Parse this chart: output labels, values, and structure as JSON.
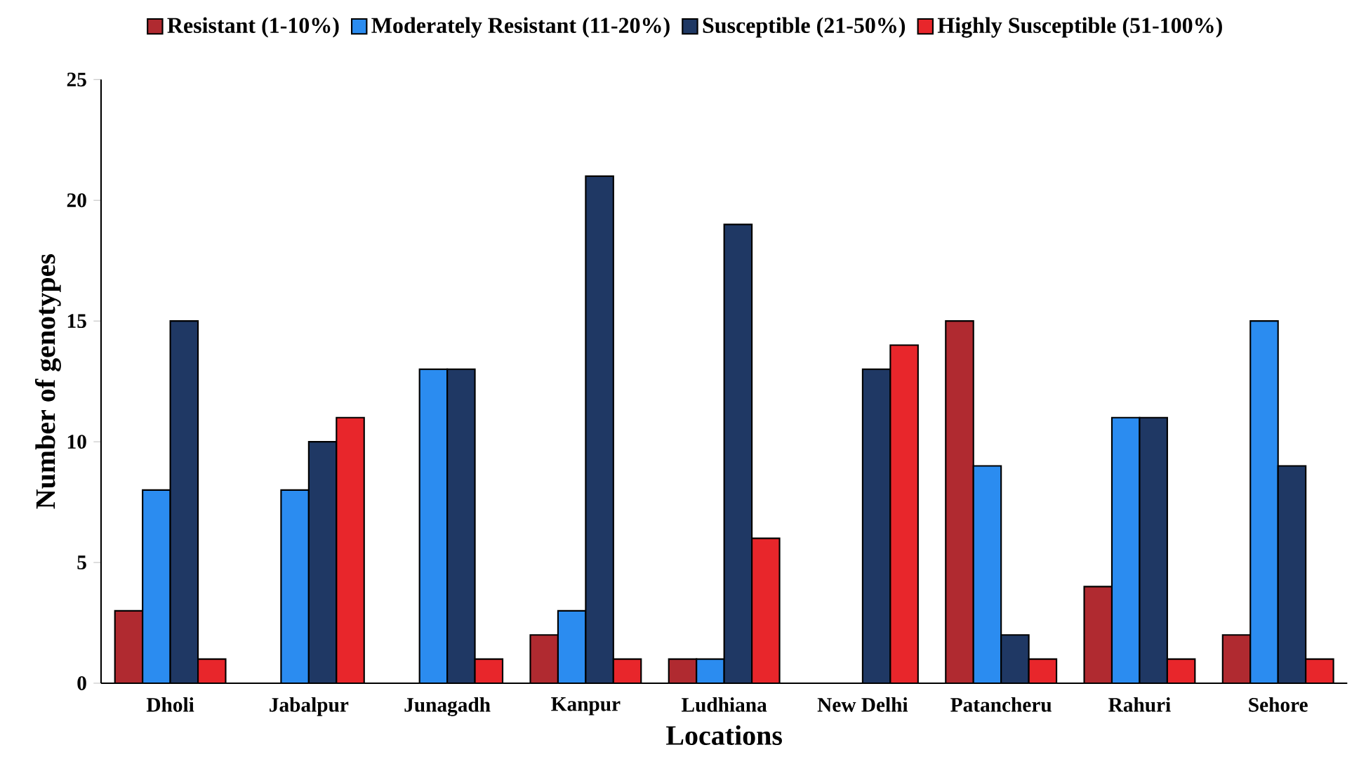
{
  "chart_data": {
    "type": "bar",
    "xlabel": "Locations",
    "ylabel": "Number of genotypes",
    "categories": [
      "Dholi",
      "Jabalpur",
      "Junagadh",
      "Kanpur",
      "Ludhiana",
      "New Delhi",
      "Patancheru",
      "Rahuri",
      "Sehore"
    ],
    "series": [
      {
        "name": "Resistant (1-10%)",
        "color": "#b02a30",
        "values": [
          3,
          null,
          null,
          2,
          1,
          null,
          15,
          4,
          2
        ]
      },
      {
        "name": "Moderately Resistant (11-20%)",
        "color": "#2b8cf0",
        "values": [
          8,
          8,
          13,
          3,
          1,
          null,
          9,
          11,
          15
        ]
      },
      {
        "name": "Susceptible (21-50%)",
        "color": "#1f3864",
        "values": [
          15,
          10,
          13,
          21,
          19,
          13,
          2,
          11,
          9
        ]
      },
      {
        "name": "Highly Susceptible (51-100%)",
        "color": "#e8262b",
        "values": [
          1,
          11,
          1,
          1,
          6,
          14,
          1,
          1,
          1
        ]
      }
    ],
    "ylim": [
      0,
      25
    ],
    "yticks": [
      0,
      5,
      10,
      15,
      20,
      25
    ],
    "legend": "top"
  }
}
